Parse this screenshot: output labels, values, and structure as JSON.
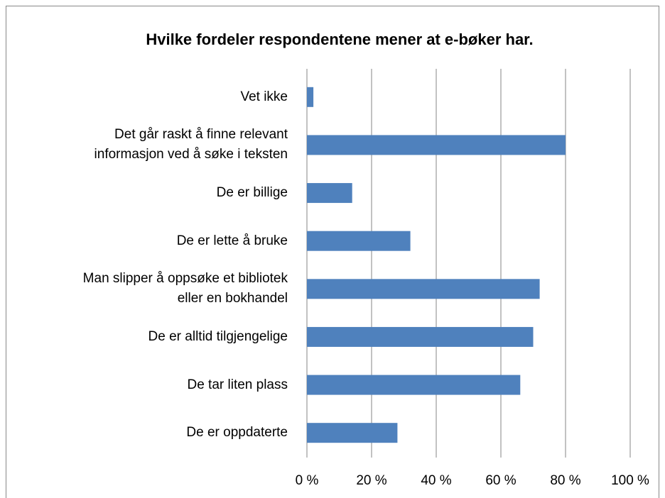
{
  "chart_data": {
    "type": "bar",
    "orientation": "horizontal",
    "title": "Hvilke fordeler respondentene mener at e-bøker har.",
    "categories": [
      "Vet ikke",
      "Det går raskt å finne relevant\ninformasjon ved å søke i teksten",
      "De er billige",
      "De er lette å bruke",
      "Man slipper å oppsøke et bibliotek\neller en bokhandel",
      "De er alltid tilgjengelige",
      "De tar liten plass",
      "De er oppdaterte"
    ],
    "values": [
      2,
      80,
      14,
      32,
      72,
      70,
      66,
      28
    ],
    "color": "#4f81bd",
    "xlim": [
      0,
      100
    ],
    "xticks": [
      {
        "value": 0,
        "label": "0 %"
      },
      {
        "value": 20,
        "label": "20 %"
      },
      {
        "value": 40,
        "label": "40 %"
      },
      {
        "value": 60,
        "label": "60 %"
      },
      {
        "value": 80,
        "label": "80 %"
      },
      {
        "value": 100,
        "label": "100 %"
      }
    ],
    "grid": true
  }
}
